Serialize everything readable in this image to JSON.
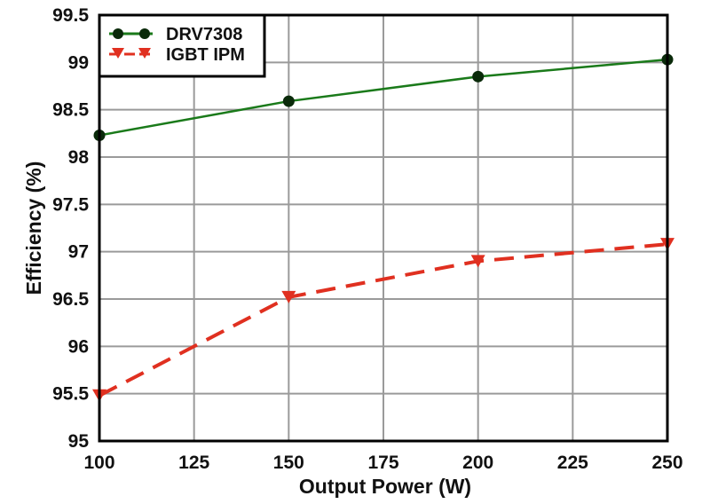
{
  "chart_data": {
    "type": "line",
    "title": "",
    "xlabel": "Output Power (W)",
    "ylabel": "Efficiency (%)",
    "x": [
      100,
      150,
      200,
      250
    ],
    "xticks": [
      100,
      125,
      150,
      175,
      200,
      225,
      250
    ],
    "yticks": [
      95,
      95.5,
      96,
      96.5,
      97,
      97.5,
      98,
      98.5,
      99,
      99.5
    ],
    "xlim": [
      100,
      250
    ],
    "ylim": [
      95,
      99.5
    ],
    "grid": true,
    "legend_position": "upper left",
    "series": [
      {
        "name": "DRV7308",
        "values": [
          98.23,
          98.59,
          98.85,
          99.03
        ],
        "color": "#1a7a1a",
        "marker_color": "#0a2a0a",
        "line_style": "solid",
        "marker": "circle"
      },
      {
        "name": "IGBT IPM",
        "values": [
          95.48,
          96.52,
          96.9,
          97.08
        ],
        "color": "#e03020",
        "marker_color": "#e03020",
        "line_style": "dashed",
        "marker": "triangle-down"
      }
    ]
  },
  "labels": {
    "xlabel": "Output Power (W)",
    "ylabel": "Efficiency (%)",
    "legend": [
      "DRV7308",
      "IGBT IPM"
    ]
  }
}
